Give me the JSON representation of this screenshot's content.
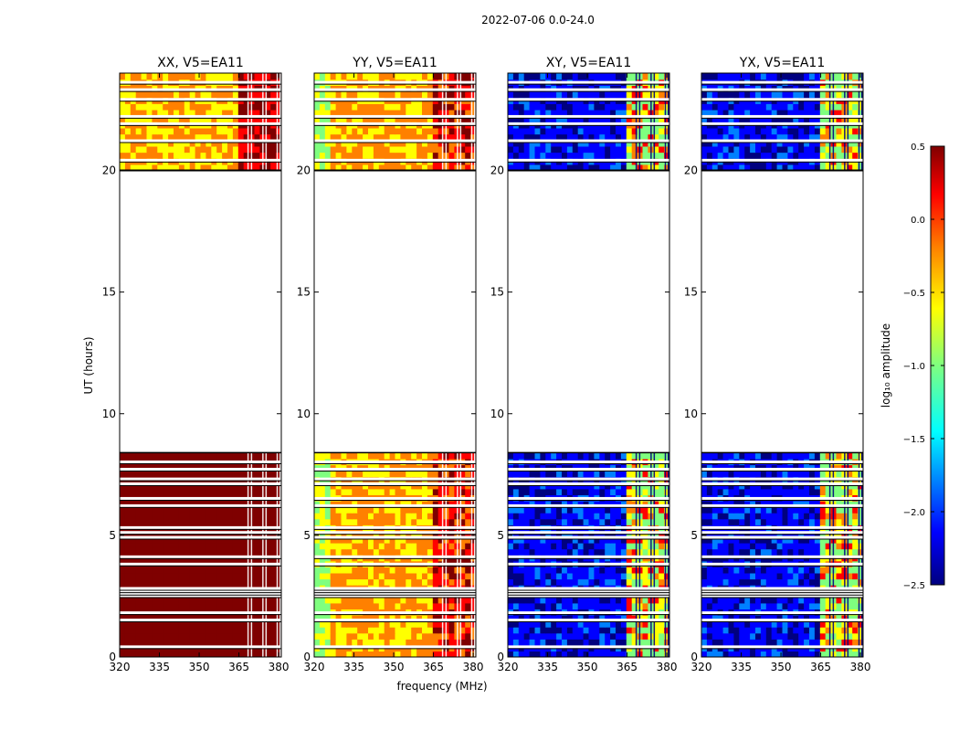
{
  "figure": {
    "suptitle": "2022-07-06 0.0-24.0"
  },
  "colors": {
    "heat": [
      "#00007f",
      "#0000ff",
      "#0080ff",
      "#00ffff",
      "#7fff7f",
      "#ffff00",
      "#ff8000",
      "#ff0000",
      "#7f0000"
    ],
    "white": "#ffffff",
    "black": "#000000"
  },
  "chart_data": [
    {
      "type": "heatmap",
      "title": "XX, V5=EA11",
      "xlabel": "",
      "ylabel": "UT (hours)",
      "xlim": [
        320,
        381
      ],
      "ylim": [
        0,
        24
      ],
      "xticks": [
        320,
        335,
        350,
        365,
        380
      ],
      "xtick_labels": [
        "320",
        "335",
        "350",
        "365",
        "380"
      ],
      "yticks": [
        0,
        5,
        10,
        15,
        20
      ],
      "ytick_labels": [
        "0",
        "5",
        "10",
        "15",
        "20"
      ],
      "pattern": "xx"
    },
    {
      "type": "heatmap",
      "title": "YY, V5=EA11",
      "xlabel": "frequency (MHz)",
      "ylabel": "",
      "xlim": [
        320,
        381
      ],
      "ylim": [
        0,
        24
      ],
      "xticks": [
        320,
        335,
        350,
        365,
        380
      ],
      "xtick_labels": [
        "320",
        "335",
        "350",
        "365",
        "380"
      ],
      "yticks": [
        0,
        5,
        10,
        15,
        20
      ],
      "ytick_labels": [
        "0",
        "5",
        "10",
        "15",
        "20"
      ],
      "pattern": "parallel"
    },
    {
      "type": "heatmap",
      "title": "XY, V5=EA11",
      "xlabel": "",
      "ylabel": "",
      "xlim": [
        320,
        381
      ],
      "ylim": [
        0,
        24
      ],
      "xticks": [
        320,
        335,
        350,
        365,
        380
      ],
      "xtick_labels": [
        "320",
        "335",
        "350",
        "365",
        "380"
      ],
      "yticks": [
        0,
        5,
        10,
        15,
        20
      ],
      "ytick_labels": [
        "0",
        "5",
        "10",
        "15",
        "20"
      ],
      "pattern": "cross"
    },
    {
      "type": "heatmap",
      "title": "YX, V5=EA11",
      "xlabel": "",
      "ylabel": "",
      "xlim": [
        320,
        381
      ],
      "ylim": [
        0,
        24
      ],
      "xticks": [
        320,
        335,
        350,
        365,
        380
      ],
      "xtick_labels": [
        "320",
        "335",
        "350",
        "365",
        "380"
      ],
      "yticks": [
        0,
        5,
        10,
        15,
        20
      ],
      "ytick_labels": [
        "0",
        "5",
        "10",
        "15",
        "20"
      ],
      "pattern": "cross"
    }
  ],
  "colorbar": {
    "label": "log₁₀ amplitude",
    "range": [
      -2.5,
      0.5
    ],
    "ticks": [
      0.5,
      0.0,
      -0.5,
      -1.0,
      -1.5,
      -2.0,
      -2.5
    ],
    "tick_labels": [
      "0.5",
      "0.0",
      "−0.5",
      "−1.0",
      "−1.5",
      "−2.0",
      "−2.5"
    ]
  },
  "data_bands": {
    "no_data_hours": [
      8.4,
      20.0
    ],
    "flagged_rows_hours": [
      0.4,
      1.5,
      1.8,
      2.5,
      2.6,
      2.7,
      2.8,
      3.8,
      4.1,
      4.9,
      5.1,
      5.3,
      6.2,
      6.5,
      7.1,
      7.3,
      7.7,
      8.0,
      20.4,
      21.2,
      21.9,
      22.2,
      22.9,
      23.3,
      23.6
    ],
    "rfi_channel_edges_mhz": [
      363.5,
      368.2,
      369.5,
      373.8,
      375.0,
      379.2,
      380.3
    ]
  }
}
